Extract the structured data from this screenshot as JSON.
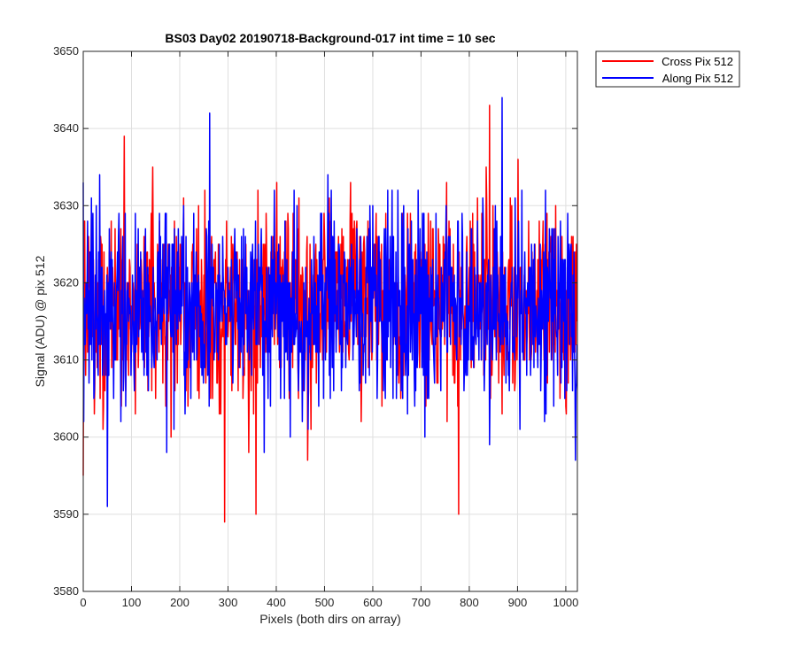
{
  "chart_data": {
    "type": "line",
    "title": "BS03 Day02 20190718-Background-017 int time = 10 sec",
    "xlabel": "Pixels (both dirs on array)",
    "ylabel": "Signal (ADU) @ pix 512",
    "xlim": [
      0,
      1024
    ],
    "ylim": [
      3580,
      3650
    ],
    "xticks": [
      "0",
      "100",
      "200",
      "300",
      "400",
      "500",
      "600",
      "700",
      "800",
      "900",
      "1000"
    ],
    "yticks": [
      "3580",
      "3590",
      "3600",
      "3610",
      "3620",
      "3630",
      "3640",
      "3650"
    ],
    "grid": true,
    "legend_position": "outside top-right",
    "series": [
      {
        "name": "Cross Pix 512",
        "color": "#ff0000",
        "summary": {
          "mean": 3617,
          "min": 3589,
          "max": 3643,
          "n_points": 1024
        },
        "extremes": [
          [
            0,
            3595
          ],
          [
            85,
            3639
          ],
          [
            293,
            3589
          ],
          [
            358,
            3590
          ],
          [
            778,
            3590
          ],
          [
            842,
            3643
          ]
        ]
      },
      {
        "name": "Along Pix 512",
        "color": "#0000ff",
        "summary": {
          "mean": 3617,
          "min": 3591,
          "max": 3644,
          "n_points": 1024
        },
        "extremes": [
          [
            0,
            3633
          ],
          [
            50,
            3591
          ],
          [
            262,
            3642
          ],
          [
            868,
            3644
          ],
          [
            1020,
            3597
          ]
        ]
      }
    ]
  }
}
